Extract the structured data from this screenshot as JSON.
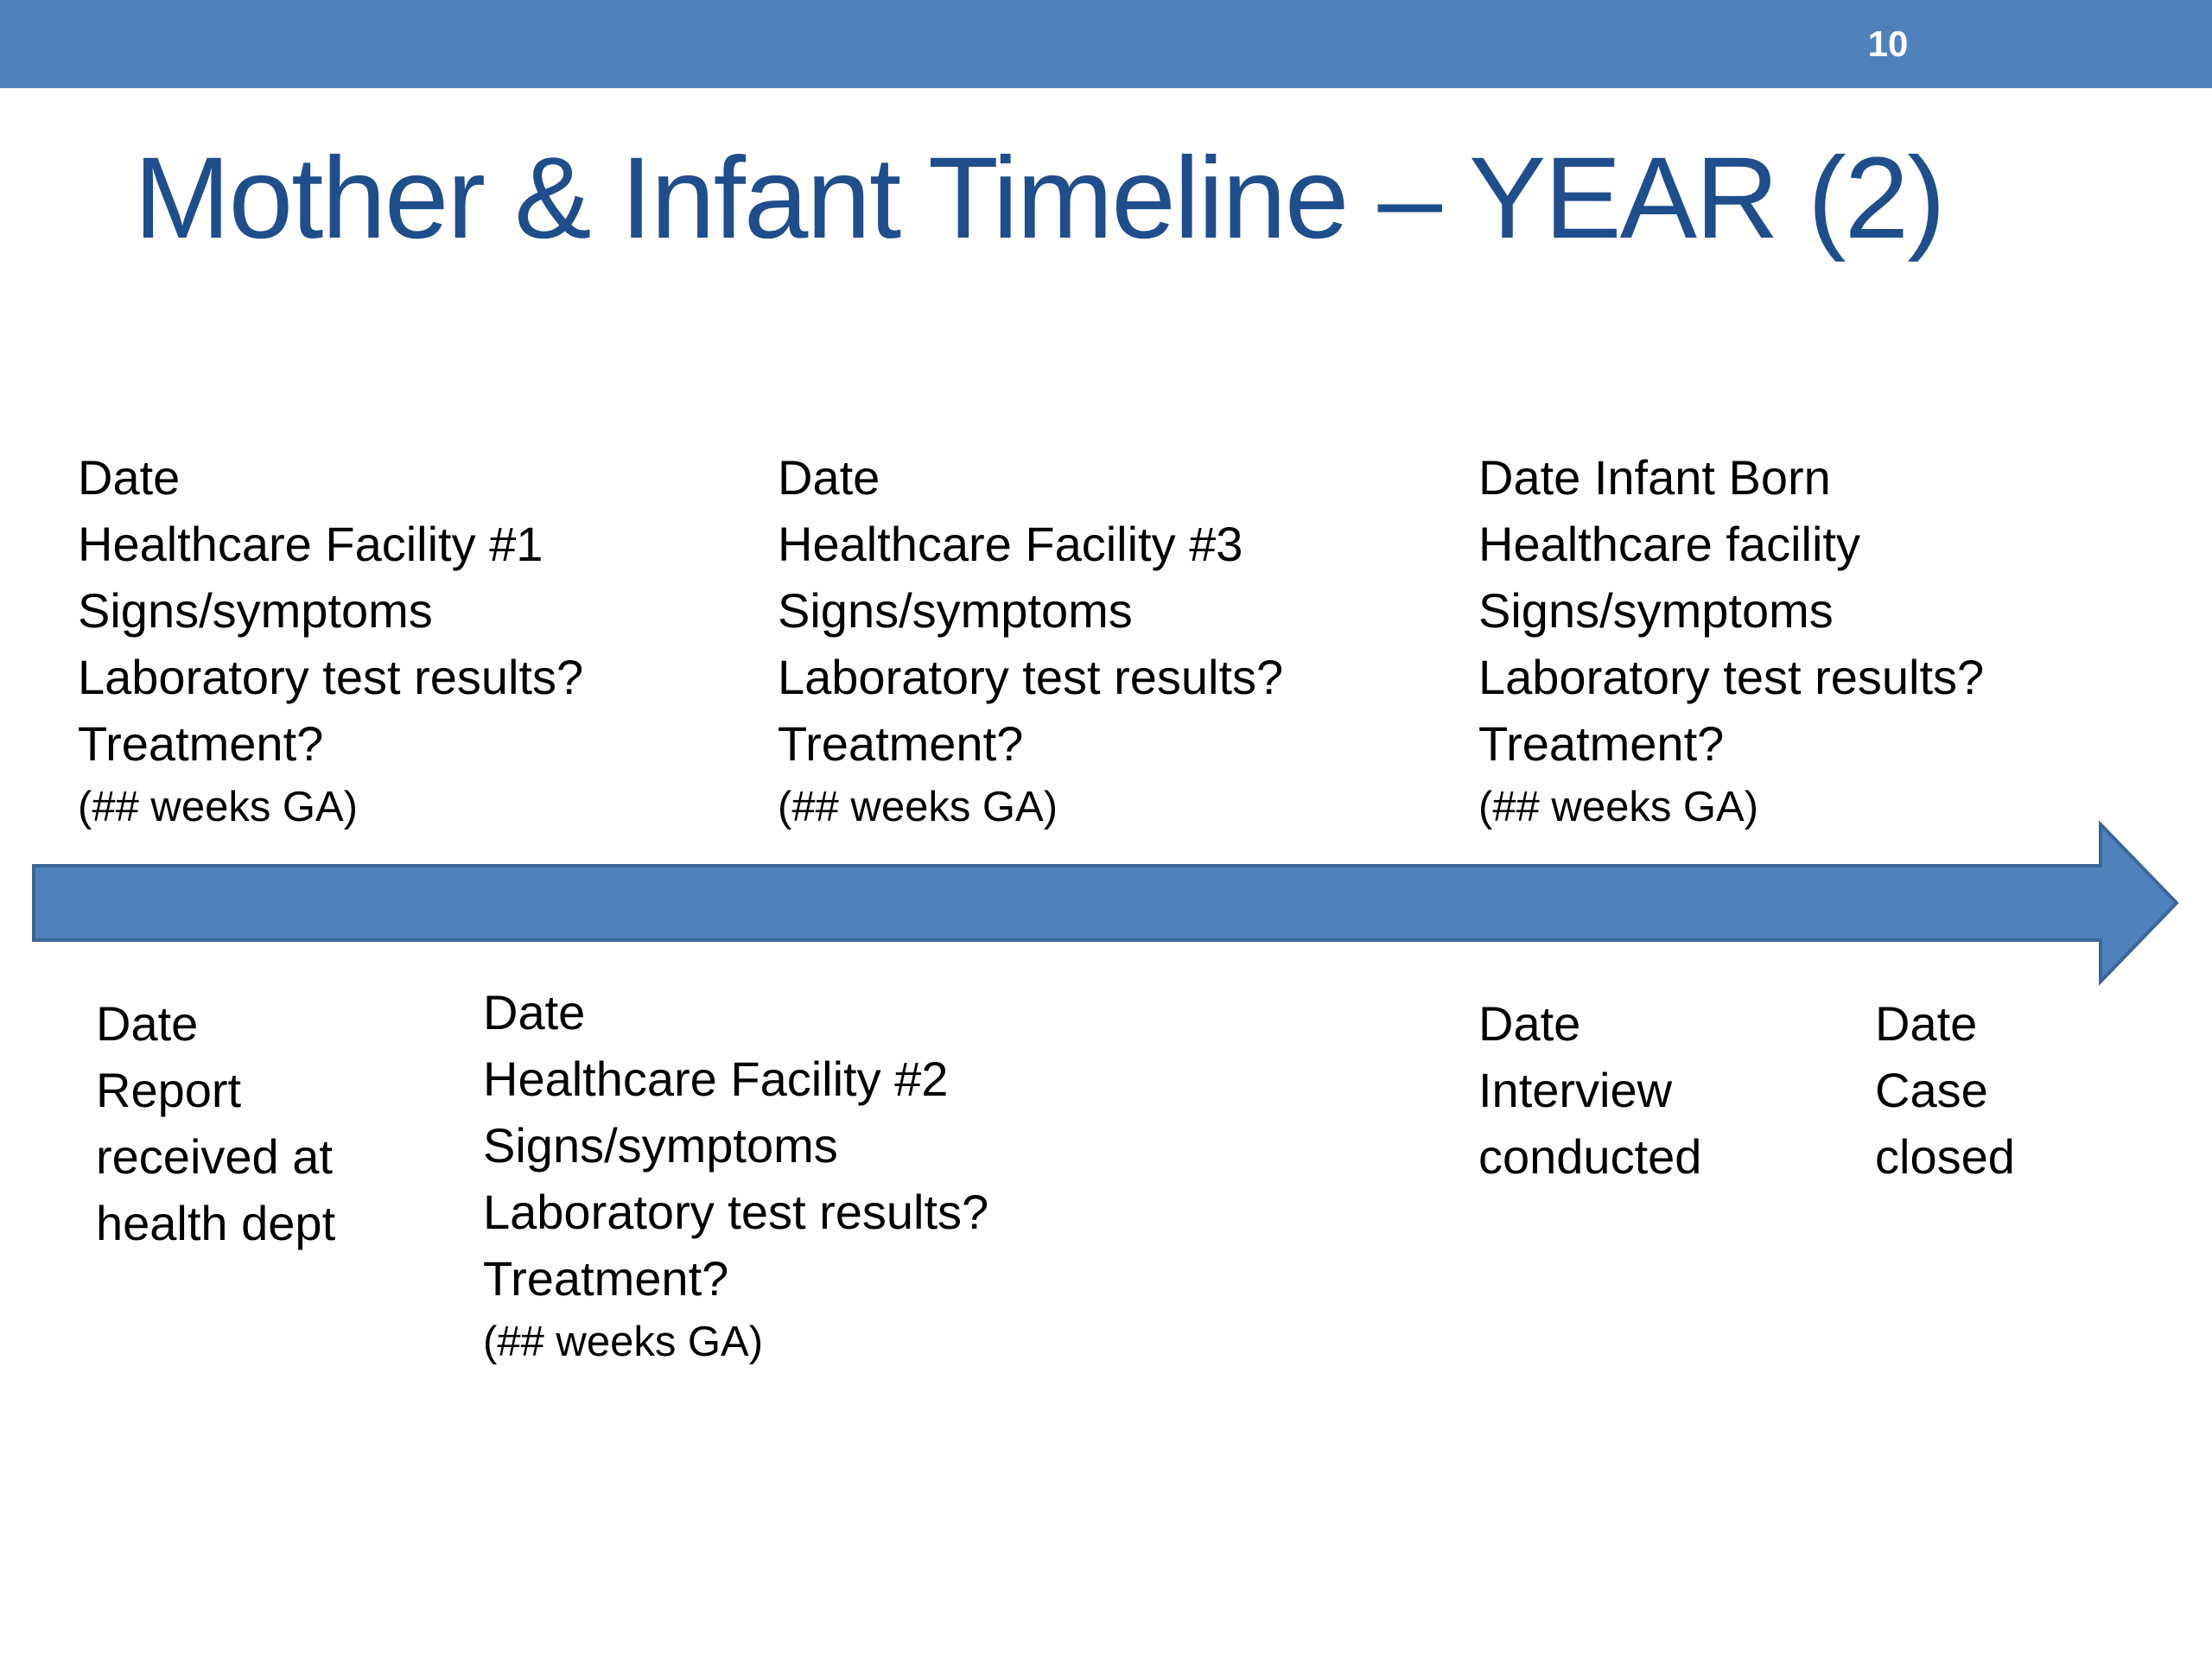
{
  "slide_number": "10",
  "title": "Mother & Infant Timeline – YEAR (2)",
  "colors": {
    "header_bar": "#4f81bd",
    "title_text": "#1f4e8c",
    "arrow_fill": "#4f81bd",
    "arrow_stroke": "#3a6699"
  },
  "above_timeline": [
    {
      "lines": [
        "Date",
        "Healthcare Facility #1",
        "Signs/symptoms",
        "Laboratory test results?",
        "Treatment?"
      ],
      "note": "(## weeks GA)"
    },
    {
      "lines": [
        "Date",
        "Healthcare Facility #3",
        "Signs/symptoms",
        "Laboratory test results?",
        "Treatment?"
      ],
      "note": "(## weeks GA)"
    },
    {
      "lines": [
        "Date Infant Born",
        "Healthcare facility",
        "Signs/symptoms",
        "Laboratory test results?",
        "Treatment?"
      ],
      "note": "(## weeks GA)"
    }
  ],
  "below_timeline": [
    {
      "lines": [
        "Date",
        "Report",
        "received at",
        "health dept"
      ]
    },
    {
      "lines": [
        "Date",
        "Healthcare Facility #2",
        "Signs/symptoms",
        "Laboratory test results?",
        "Treatment?"
      ],
      "note": "(## weeks GA)"
    },
    {
      "lines": [
        "Date",
        "Interview",
        "conducted"
      ]
    },
    {
      "lines": [
        "Date",
        "Case",
        "closed"
      ]
    }
  ]
}
